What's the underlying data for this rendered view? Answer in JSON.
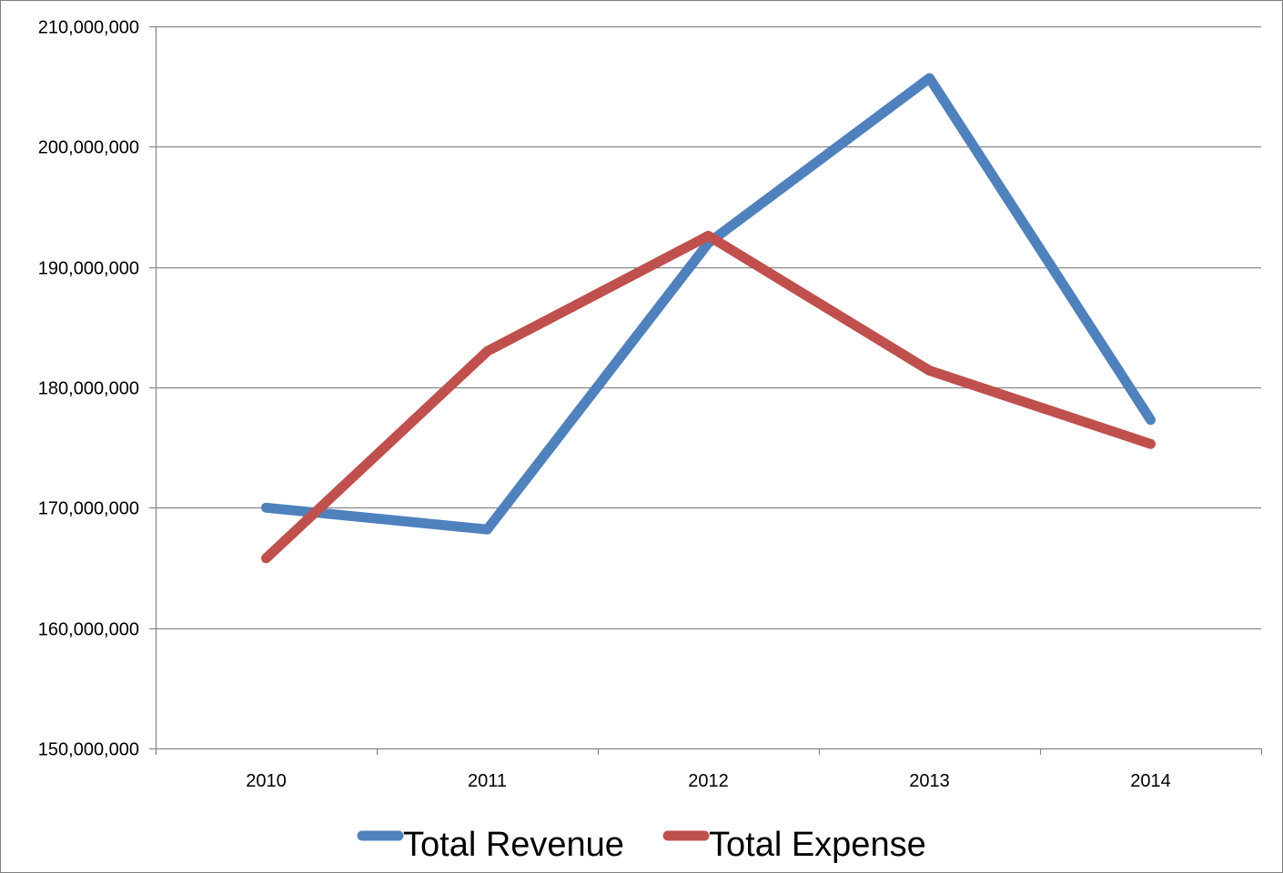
{
  "chart_data": {
    "type": "line",
    "categories": [
      "2010",
      "2011",
      "2012",
      "2013",
      "2014"
    ],
    "series": [
      {
        "name": "Total Revenue",
        "color": "#4f81bd",
        "values": [
          170000000,
          168200000,
          192000000,
          205700000,
          177300000
        ]
      },
      {
        "name": "Total Expense",
        "color": "#c0504d",
        "values": [
          165800000,
          183000000,
          192600000,
          181400000,
          175300000
        ]
      }
    ],
    "ylim": [
      150000000,
      210000000
    ],
    "yticks": [
      150000000,
      160000000,
      170000000,
      180000000,
      190000000,
      200000000,
      210000000
    ],
    "ytick_labels": [
      "150,000,000",
      "160,000,000",
      "170,000,000",
      "180,000,000",
      "190,000,000",
      "200,000,000",
      "210,000,000"
    ],
    "grid": true,
    "legend_position": "bottom",
    "gridline_color": "#868686",
    "axis_color": "#868686"
  }
}
